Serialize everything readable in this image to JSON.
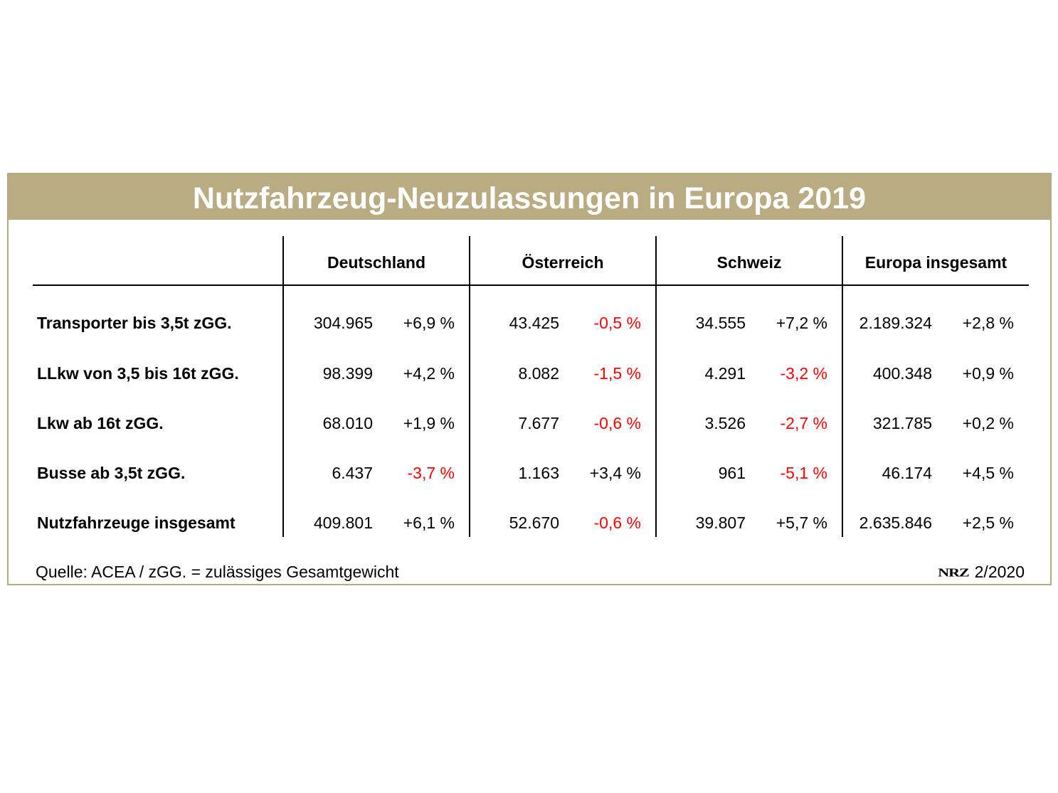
{
  "chart_data": {
    "type": "table",
    "title": "Nutzfahrzeug-Neuzulassungen in Europa 2019",
    "columns": [
      "Deutschland",
      "Österreich",
      "Schweiz",
      "Europa insgesamt"
    ],
    "rows": [
      {
        "label": "Transporter bis 3,5t zGG.",
        "cells": [
          {
            "value": "304.965",
            "change": "+6,9 %",
            "negative": false
          },
          {
            "value": "43.425",
            "change": "-0,5 %",
            "negative": true
          },
          {
            "value": "34.555",
            "change": "+7,2 %",
            "negative": false
          },
          {
            "value": "2.189.324",
            "change": "+2,8 %",
            "negative": false
          }
        ]
      },
      {
        "label": "LLkw von 3,5 bis 16t zGG.",
        "cells": [
          {
            "value": "98.399",
            "change": "+4,2 %",
            "negative": false
          },
          {
            "value": "8.082",
            "change": "-1,5 %",
            "negative": true
          },
          {
            "value": "4.291",
            "change": "-3,2 %",
            "negative": true
          },
          {
            "value": "400.348",
            "change": "+0,9 %",
            "negative": false
          }
        ]
      },
      {
        "label": "Lkw ab 16t zGG.",
        "cells": [
          {
            "value": "68.010",
            "change": "+1,9 %",
            "negative": false
          },
          {
            "value": "7.677",
            "change": "-0,6 %",
            "negative": true
          },
          {
            "value": "3.526",
            "change": "-2,7 %",
            "negative": true
          },
          {
            "value": "321.785",
            "change": "+0,2 %",
            "negative": false
          }
        ]
      },
      {
        "label": "Busse ab 3,5t zGG.",
        "cells": [
          {
            "value": "6.437",
            "change": "-3,7 %",
            "negative": true
          },
          {
            "value": "1.163",
            "change": "+3,4 %",
            "negative": false
          },
          {
            "value": "961",
            "change": "-5,1 %",
            "negative": true
          },
          {
            "value": "46.174",
            "change": "+4,5 %",
            "negative": false
          }
        ]
      },
      {
        "label": "Nutzfahrzeuge insgesamt",
        "cells": [
          {
            "value": "409.801",
            "change": "+6,1 %",
            "negative": false
          },
          {
            "value": "52.670",
            "change": "-0,6 %",
            "negative": true
          },
          {
            "value": "39.807",
            "change": "+5,7 %",
            "negative": false
          },
          {
            "value": "2.635.846",
            "change": "+2,5 %",
            "negative": false
          }
        ]
      }
    ]
  },
  "footer": {
    "source": "Quelle: ACEA / zGG. = zulässiges Gesamtgewicht",
    "logo": "NRZ",
    "date": "2/2020"
  },
  "colors": {
    "accent": "#b9ab82",
    "negative": "#ff0000",
    "text": "#000000"
  }
}
